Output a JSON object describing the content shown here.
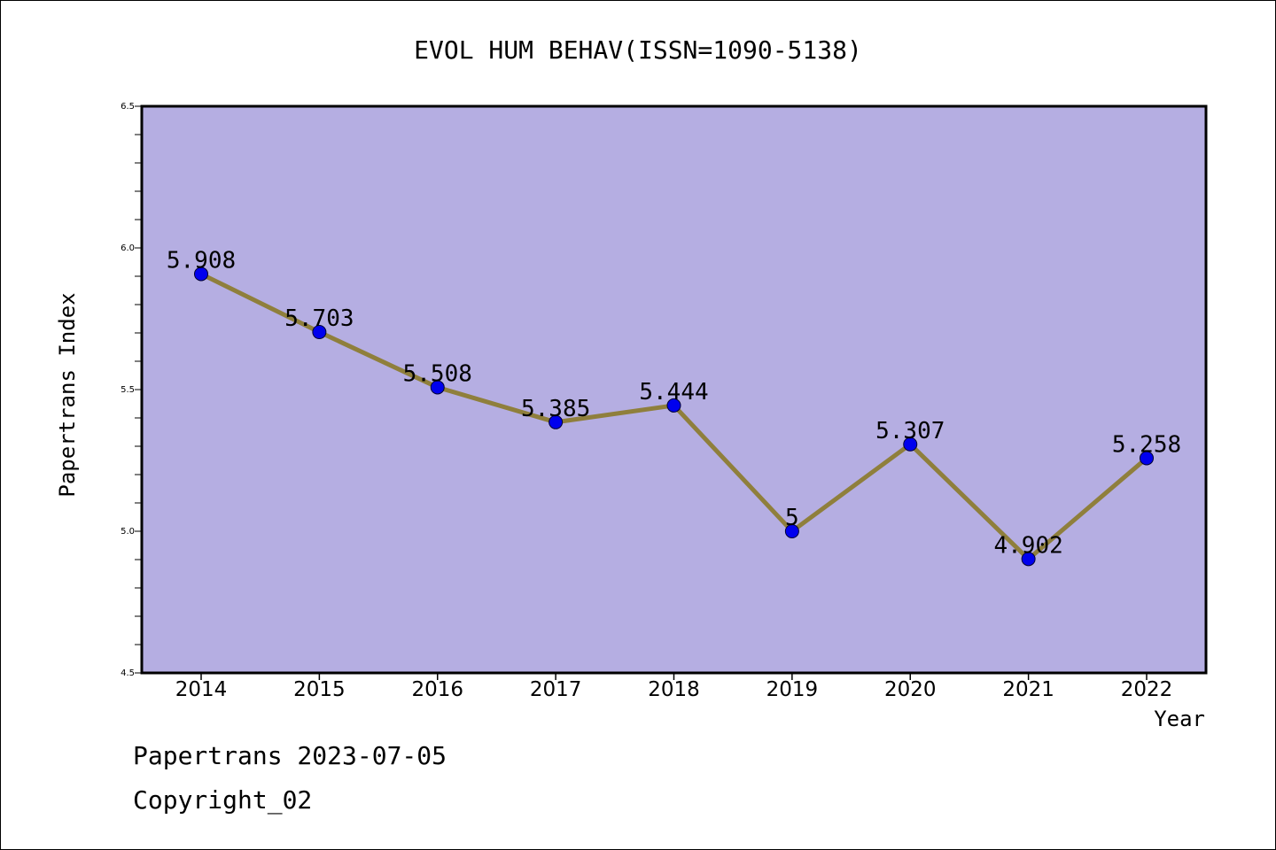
{
  "chart_data": {
    "type": "line",
    "title": "EVOL HUM BEHAV(ISSN=1090-5138)",
    "xlabel": "Year",
    "ylabel": "Papertrans Index",
    "x": [
      "2014",
      "2015",
      "2016",
      "2017",
      "2018",
      "2019",
      "2020",
      "2021",
      "2022"
    ],
    "values": [
      5.908,
      5.703,
      5.508,
      5.385,
      5.444,
      5,
      5.307,
      4.902,
      5.258
    ],
    "data_labels": [
      "5.908",
      "5.703",
      "5.508",
      "5.385",
      "5.444",
      "5",
      "5.307",
      "4.902",
      "5.258"
    ],
    "ylim": [
      4.5,
      6.5
    ],
    "yticks": [
      "4.5",
      "5.0",
      "5.5",
      "6.0",
      "6.5"
    ],
    "grid": false,
    "colors": {
      "plot_background": "#b5aee2",
      "line": "#8f7f3c",
      "marker": "#0000ee"
    }
  },
  "footer": {
    "line1": "Papertrans 2023-07-05",
    "line2": "Copyright_02"
  }
}
